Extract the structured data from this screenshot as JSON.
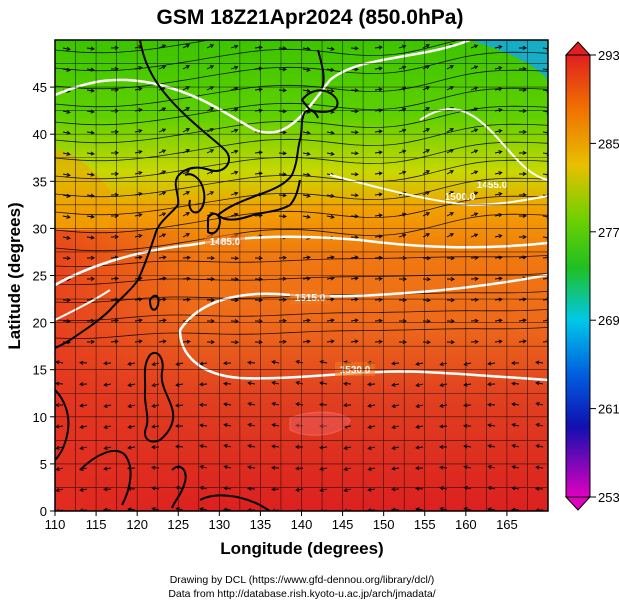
{
  "title": "GSM 18Z21Apr2024 (850.0hPa)",
  "xlabel": "Longitude (degrees)",
  "ylabel": "Latitude  (degrees)",
  "credits": [
    "Drawing by DCL (https://www.gfd-dennou.org/library/dcl/)",
    "Data from http://database.rish.kyoto-u.ac.jp/arch/jmadata/"
  ],
  "chart_data": {
    "type": "heatmap",
    "xlim": [
      110,
      170
    ],
    "ylim": [
      0,
      50
    ],
    "x_ticks": [
      110,
      115,
      120,
      125,
      130,
      135,
      140,
      145,
      150,
      155,
      160,
      165
    ],
    "y_ticks": [
      0,
      5,
      10,
      15,
      20,
      25,
      30,
      35,
      40,
      45
    ],
    "grid": true,
    "colorbar": {
      "min": 253,
      "max": 293,
      "ticks": [
        293,
        285,
        277,
        269,
        261,
        253
      ],
      "placement": "right"
    },
    "contour_labels": [
      "1485.0",
      "1515.0",
      "1530.0",
      "1500.0",
      "1455.0"
    ],
    "colors": {
      "warm": "#d42020",
      "orange": "#f08000",
      "yellow": "#e0e000",
      "green": "#30c000",
      "cyan": "#00c0e0",
      "blue": "#1010c0",
      "magenta": "#e000c0"
    }
  }
}
